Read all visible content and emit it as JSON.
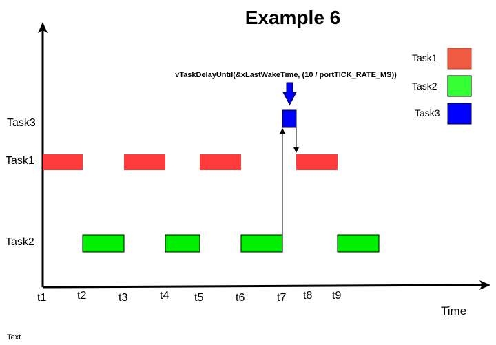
{
  "title": "Example 6",
  "rows": {
    "task3": "Task3",
    "task1": "Task1",
    "task2": "Task2"
  },
  "time_axis": {
    "label": "Time",
    "ticks": [
      "t1",
      "t2",
      "t3",
      "t4",
      "t5",
      "t6",
      "t7",
      "t8",
      "t9"
    ]
  },
  "annotation": {
    "call": "vTaskDelayUntil(&xLastWakeTime, (10 / portTICK_RATE_MS))"
  },
  "legend": [
    {
      "label": "Task1",
      "color": "#f05a40"
    },
    {
      "label": "Task2",
      "color": "#33ff33"
    },
    {
      "label": "Task3",
      "color": "#0000ff"
    }
  ],
  "colors": {
    "task1": "#ff3a3a",
    "task2": "#00ee00",
    "task3": "#0000ff",
    "axis": "#000000"
  },
  "footer": "Text"
}
